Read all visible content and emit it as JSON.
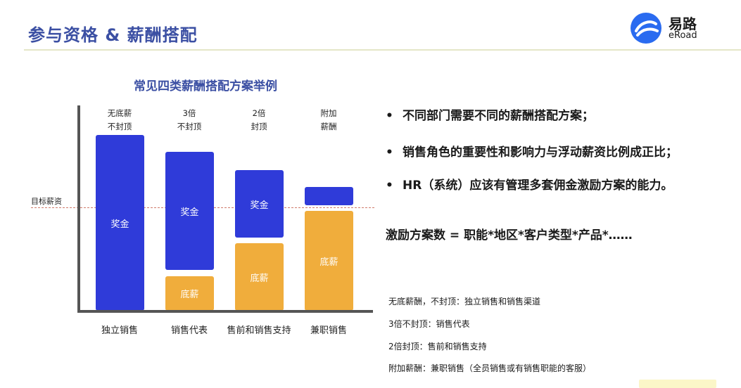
{
  "slide": {
    "title": "参与资格 & 薪酬搭配"
  },
  "logo": {
    "name_cn": "易路",
    "name_en": "eRoad",
    "icon": "eroad-logo-icon",
    "color": "#2a6bf0"
  },
  "chart_data": {
    "type": "bar",
    "title": "常见四类薪酬搭配方案举例",
    "reference_line": {
      "label": "目标薪资"
    },
    "categories": [
      "独立销售",
      "销售代表",
      "售前和销售支持",
      "兼职销售"
    ],
    "column_headers": [
      [
        "无底薪",
        "不封顶"
      ],
      [
        "3倍",
        "不封顶"
      ],
      [
        "2倍",
        "封顶"
      ],
      [
        "附加",
        "薪酬"
      ]
    ],
    "series": [
      {
        "name": "奖金",
        "color": "#2f3bd9",
        "labels": [
          "奖金",
          "奖金",
          "奖金",
          ""
        ]
      },
      {
        "name": "底薪",
        "color": "#f0ad3c",
        "labels": [
          "",
          "底薪",
          "底薪",
          "底薪"
        ]
      }
    ]
  },
  "bullets": [
    "不同部门需要不同的薪酬搭配方案；",
    "销售角色的重要性和影响力与浮动薪资比例成正比；",
    "HR（系统）应该有管理多套佣金激励方案的能力。"
  ],
  "bullet_marker": "•",
  "formula": "激励方案数 = 职能*地区*客户类型*产品*……",
  "notes": [
    "无底薪酬，不封顶：独立销售和销售渠道",
    "3倍不封顶：销售代表",
    "2倍封顶：售前和销售支持",
    "附加薪酬：兼职销售（全员销售或有销售职能的客服）"
  ]
}
